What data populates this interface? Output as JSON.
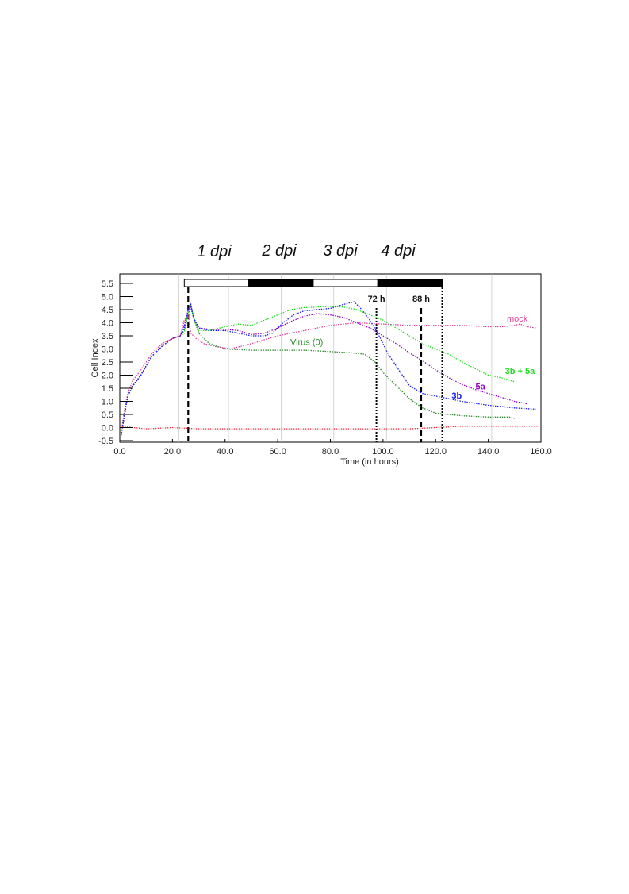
{
  "dpi_labels": [
    "1 dpi",
    "2 dpi",
    "3 dpi",
    "4 dpi"
  ],
  "colors": {
    "mock": "#e0409a",
    "virus": "#2a8a2a",
    "3b_5a": "#22dd22",
    "5a": "#9900cc",
    "3b": "#1a1aff",
    "baseline": "#ee3344"
  },
  "chart_data": {
    "type": "line",
    "xlabel": "Time (in hours)",
    "ylabel": "Cell Index",
    "xlim": [
      0,
      160
    ],
    "ylim": [
      -0.5,
      5.5
    ],
    "x_ticks": [
      "0.0",
      "20.0",
      "40.0",
      "60.0",
      "80.0",
      "100.0",
      "120.0",
      "140.0",
      "160.0"
    ],
    "x_tick_values": [
      0,
      20,
      40,
      60,
      80,
      100,
      120,
      140,
      160
    ],
    "y_ticks": [
      "5.5",
      "5.0",
      "4.5",
      "4.0",
      "3.5",
      "3.0",
      "2.5",
      "2.0",
      "1.5",
      "1.0",
      "0.5",
      "0.0",
      "-0.5"
    ],
    "y_tick_values": [
      5.5,
      5.0,
      4.5,
      4.0,
      3.5,
      3.0,
      2.5,
      2.0,
      1.5,
      1.0,
      0.5,
      0.0,
      -0.5
    ],
    "grid_x": [
      22.5,
      41.3,
      61.3,
      81.3,
      101.3,
      141.3
    ],
    "day_bars": [
      {
        "start": 24.5,
        "end": 49,
        "fill": "white"
      },
      {
        "start": 49,
        "end": 73.5,
        "fill": "black"
      },
      {
        "start": 73.5,
        "end": 98,
        "fill": "white"
      },
      {
        "start": 98,
        "end": 122.5,
        "fill": "black"
      }
    ],
    "markers": [
      {
        "x": 26,
        "style": "dashed",
        "label": ""
      },
      {
        "x": 97.5,
        "style": "dotted",
        "label": "72 h"
      },
      {
        "x": 114.5,
        "style": "dashed",
        "label": "88 h"
      },
      {
        "x": 122.5,
        "style": "dotted",
        "label": ""
      }
    ],
    "series": [
      {
        "name": "mock",
        "color_key": "mock",
        "x": [
          0.5,
          1.5,
          3,
          5,
          8,
          12,
          16,
          20,
          23,
          24.5,
          26,
          27,
          29,
          32,
          36,
          42,
          50,
          60,
          70,
          80,
          90,
          100,
          110,
          120,
          130,
          140,
          145,
          150,
          152,
          155,
          158
        ],
        "y": [
          -0.2,
          0.5,
          1.3,
          1.8,
          2.2,
          2.8,
          3.2,
          3.4,
          3.5,
          4.1,
          4.3,
          3.6,
          3.4,
          3.2,
          3.1,
          3.0,
          3.2,
          3.5,
          3.7,
          3.9,
          4.0,
          3.95,
          3.9,
          3.9,
          3.9,
          3.85,
          3.85,
          3.9,
          3.95,
          3.85,
          3.8
        ]
      },
      {
        "name": "Virus (0)",
        "color_key": "virus",
        "x": [
          0.5,
          1.5,
          3,
          5,
          8,
          12,
          16,
          20,
          23,
          24.5,
          26,
          27,
          28,
          30,
          34,
          40,
          50,
          60,
          70,
          80,
          88,
          93,
          97,
          100,
          105,
          110,
          115,
          120,
          130,
          140,
          148,
          150
        ],
        "y": [
          -0.3,
          0.4,
          1.2,
          1.6,
          2.0,
          2.7,
          3.1,
          3.4,
          3.5,
          3.7,
          4.3,
          4.6,
          4.2,
          3.6,
          3.2,
          3.0,
          2.95,
          2.95,
          2.95,
          2.9,
          2.85,
          2.8,
          2.5,
          2.1,
          1.6,
          1.1,
          0.75,
          0.55,
          0.45,
          0.4,
          0.4,
          0.35
        ]
      },
      {
        "name": "3b + 5a",
        "color_key": "3b_5a",
        "x": [
          0.5,
          1.5,
          3,
          5,
          8,
          12,
          16,
          20,
          23,
          24.5,
          26,
          27,
          28,
          30,
          34,
          40,
          45,
          50,
          55,
          60,
          65,
          70,
          75,
          80,
          85,
          90,
          95,
          100,
          105,
          110,
          115,
          120,
          125,
          130,
          135,
          140,
          145,
          150
        ],
        "y": [
          -0.3,
          0.3,
          1.2,
          1.6,
          2.0,
          2.7,
          3.1,
          3.4,
          3.5,
          3.6,
          4.4,
          4.7,
          4.2,
          3.7,
          3.7,
          3.85,
          3.95,
          3.9,
          4.1,
          4.3,
          4.5,
          4.58,
          4.6,
          4.62,
          4.6,
          4.5,
          4.3,
          4.1,
          3.8,
          3.5,
          3.2,
          3.0,
          2.8,
          2.5,
          2.25,
          2.0,
          1.9,
          1.75
        ]
      },
      {
        "name": "5a",
        "color_key": "5a",
        "x": [
          0.5,
          1.5,
          3,
          5,
          8,
          12,
          16,
          20,
          23,
          24.5,
          26,
          27,
          28,
          30,
          34,
          40,
          45,
          50,
          55,
          60,
          65,
          70,
          75,
          80,
          85,
          90,
          95,
          100,
          105,
          110,
          115,
          120,
          125,
          130,
          135,
          140,
          145,
          150,
          155
        ],
        "y": [
          -0.3,
          0.3,
          1.2,
          1.6,
          2.0,
          2.7,
          3.1,
          3.4,
          3.5,
          3.9,
          4.5,
          4.6,
          4.2,
          3.8,
          3.75,
          3.75,
          3.7,
          3.55,
          3.6,
          3.8,
          4.05,
          4.25,
          4.35,
          4.3,
          4.2,
          4.0,
          3.8,
          3.5,
          3.2,
          2.85,
          2.55,
          2.2,
          1.9,
          1.65,
          1.45,
          1.3,
          1.15,
          1.0,
          0.9
        ]
      },
      {
        "name": "3b",
        "color_key": "3b",
        "x": [
          0.5,
          1.5,
          3,
          5,
          8,
          12,
          16,
          20,
          23,
          24.5,
          26,
          27,
          28,
          30,
          34,
          40,
          45,
          50,
          55,
          58,
          62,
          66,
          70,
          75,
          80,
          85,
          89,
          92,
          95,
          98,
          102,
          106,
          110,
          115,
          120,
          125,
          130,
          140,
          150,
          158
        ],
        "y": [
          -0.3,
          0.3,
          1.2,
          1.6,
          2.0,
          2.7,
          3.1,
          3.4,
          3.5,
          3.8,
          4.5,
          4.7,
          4.2,
          3.8,
          3.7,
          3.7,
          3.6,
          3.5,
          3.5,
          3.6,
          4.0,
          4.3,
          4.45,
          4.5,
          4.55,
          4.7,
          4.8,
          4.5,
          4.1,
          3.6,
          2.8,
          2.2,
          1.6,
          1.3,
          1.2,
          1.1,
          1.0,
          0.85,
          0.75,
          0.7
        ]
      },
      {
        "name": "",
        "color_key": "baseline",
        "x": [
          0,
          10,
          20,
          30,
          40,
          50,
          60,
          70,
          80,
          90,
          100,
          110,
          120,
          130,
          140,
          150,
          160
        ],
        "y": [
          0.05,
          -0.05,
          0.0,
          -0.05,
          -0.05,
          -0.05,
          -0.05,
          -0.05,
          -0.05,
          -0.05,
          -0.05,
          -0.05,
          0.0,
          0.05,
          0.05,
          0.05,
          0.05
        ]
      }
    ],
    "series_labels": [
      {
        "text": "mock",
        "color_key": "mock",
        "x": 151,
        "y": 4.05,
        "weight": "normal"
      },
      {
        "text": "Virus (0)",
        "color_key": "virus",
        "x": 71,
        "y": 3.15,
        "weight": "normal"
      },
      {
        "text": "3b + 5a",
        "color_key": "3b_5a",
        "x": 152,
        "y": 2.05,
        "weight": "bold"
      },
      {
        "text": "5a",
        "color_key": "5a",
        "x": 137,
        "y": 1.45,
        "weight": "bold"
      },
      {
        "text": "3b",
        "color_key": "3b",
        "x": 128,
        "y": 1.1,
        "weight": "bold"
      }
    ]
  }
}
